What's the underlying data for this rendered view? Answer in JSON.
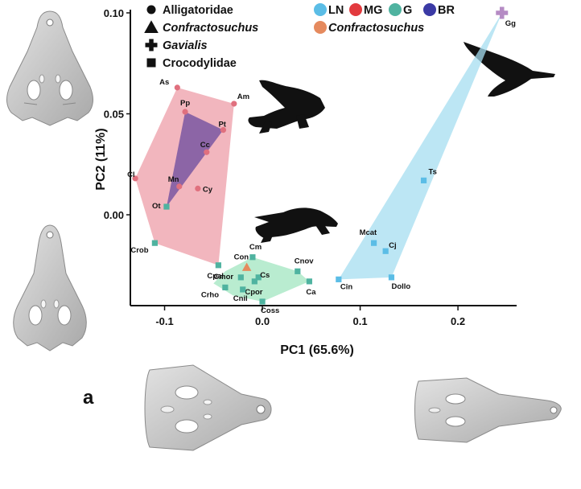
{
  "chart_data": {
    "type": "scatter",
    "title": "",
    "panel_label": "a",
    "xlabel": "PC1 (65.6%)",
    "ylabel": "PC2 (11%)",
    "xlim": [
      -0.135,
      0.26
    ],
    "ylim": [
      -0.045,
      0.1
    ],
    "xticks": [
      {
        "value": -0.1,
        "label": "-0.1"
      },
      {
        "value": 0.0,
        "label": "0.0"
      },
      {
        "value": 0.1,
        "label": "0.1"
      },
      {
        "value": 0.2,
        "label": "0.2"
      }
    ],
    "yticks": [
      {
        "value": 0.1,
        "label": "0.10"
      },
      {
        "value": 0.05,
        "label": "0.05"
      },
      {
        "value": 0.0,
        "label": "0.00"
      }
    ],
    "shape_legend": [
      {
        "symbol": "circle",
        "label": "Alligatoridae",
        "italic": false
      },
      {
        "symbol": "triangle",
        "label": "Confractosuchus",
        "italic": true
      },
      {
        "symbol": "plus",
        "label": "Gavialis",
        "italic": true
      },
      {
        "symbol": "square",
        "label": "Crocodylidae",
        "italic": false
      }
    ],
    "color_legend": [
      {
        "label": "LN",
        "color": "#5bbde6"
      },
      {
        "label": "MG",
        "color": "#e23a3e"
      },
      {
        "label": "G",
        "color": "#4fb3a0"
      },
      {
        "label": "BR",
        "color": "#3b3aa5"
      }
    ],
    "color_legend_extra": {
      "label": "Confractosuchus",
      "color": "#e58a5e"
    },
    "hulls": [
      {
        "name": "MG",
        "fill": "#e87a88",
        "opacity": 0.55,
        "points": [
          [
            -0.087,
            0.063
          ],
          [
            -0.029,
            0.055
          ],
          [
            -0.045,
            -0.025
          ],
          [
            -0.11,
            -0.014
          ],
          [
            -0.13,
            0.018
          ]
        ]
      },
      {
        "name": "BR",
        "fill": "#6a4a9e",
        "opacity": 0.75,
        "points": [
          [
            -0.079,
            0.051
          ],
          [
            -0.04,
            0.042
          ],
          [
            -0.098,
            0.004
          ]
        ]
      },
      {
        "name": "G",
        "fill": "#8be0b0",
        "opacity": 0.6,
        "points": [
          [
            -0.05,
            -0.034
          ],
          [
            -0.038,
            -0.028
          ],
          [
            -0.01,
            -0.021
          ],
          [
            0.036,
            -0.028
          ],
          [
            0.048,
            -0.033
          ],
          [
            0.0,
            -0.043
          ],
          [
            -0.03,
            -0.04
          ]
        ]
      },
      {
        "name": "LN",
        "fill": "#a5def0",
        "opacity": 0.75,
        "points": [
          [
            0.245,
            0.1
          ],
          [
            0.078,
            -0.032
          ],
          [
            0.132,
            -0.031
          ]
        ]
      }
    ],
    "points": [
      {
        "label": "As",
        "x": -0.087,
        "y": 0.063,
        "group": "MG",
        "shape": "circle",
        "color": "#e0707e"
      },
      {
        "label": "Am",
        "x": -0.029,
        "y": 0.055,
        "group": "MG",
        "shape": "circle",
        "color": "#e0707e"
      },
      {
        "label": "Pp",
        "x": -0.079,
        "y": 0.051,
        "group": "MG",
        "shape": "circle",
        "color": "#e0707e"
      },
      {
        "label": "Pt",
        "x": -0.04,
        "y": 0.042,
        "group": "MG",
        "shape": "circle",
        "color": "#e0707e"
      },
      {
        "label": "Cc",
        "x": -0.057,
        "y": 0.031,
        "group": "MG",
        "shape": "circle",
        "color": "#e0707e"
      },
      {
        "label": "Cl",
        "x": -0.13,
        "y": 0.018,
        "group": "MG",
        "shape": "circle",
        "color": "#e0707e"
      },
      {
        "label": "Mn",
        "x": -0.085,
        "y": 0.014,
        "group": "MG",
        "shape": "circle",
        "color": "#e0707e"
      },
      {
        "label": "Cy",
        "x": -0.066,
        "y": 0.013,
        "group": "MG",
        "shape": "circle",
        "color": "#e0707e"
      },
      {
        "label": "Ot",
        "x": -0.098,
        "y": 0.004,
        "group": "G",
        "shape": "square",
        "color": "#4fb3a0"
      },
      {
        "label": "Crob",
        "x": -0.11,
        "y": -0.014,
        "group": "G",
        "shape": "square",
        "color": "#4fb3a0"
      },
      {
        "label": "Cpal",
        "x": -0.045,
        "y": -0.025,
        "group": "G",
        "shape": "square",
        "color": "#4fb3a0"
      },
      {
        "label": "Con",
        "x": -0.016,
        "y": -0.026,
        "group": "Confractosuchus",
        "shape": "triangle",
        "color": "#e58a5e"
      },
      {
        "label": "Cm",
        "x": -0.01,
        "y": -0.021,
        "group": "G",
        "shape": "square",
        "color": "#4fb3a0"
      },
      {
        "label": "Cnov",
        "x": 0.036,
        "y": -0.028,
        "group": "G",
        "shape": "square",
        "color": "#4fb3a0"
      },
      {
        "label": "Cs",
        "x": -0.004,
        "y": -0.031,
        "group": "G",
        "shape": "square",
        "color": "#4fb3a0"
      },
      {
        "label": "Cmor",
        "x": -0.022,
        "y": -0.031,
        "group": "G",
        "shape": "square",
        "color": "#4fb3a0"
      },
      {
        "label": "Cpor",
        "x": -0.008,
        "y": -0.033,
        "group": "G",
        "shape": "square",
        "color": "#4fb3a0"
      },
      {
        "label": "Ca",
        "x": 0.048,
        "y": -0.033,
        "group": "G",
        "shape": "square",
        "color": "#4fb3a0"
      },
      {
        "label": "Crho",
        "x": -0.038,
        "y": -0.036,
        "group": "G",
        "shape": "square",
        "color": "#4fb3a0"
      },
      {
        "label": "Cnil",
        "x": -0.02,
        "y": -0.037,
        "group": "G",
        "shape": "square",
        "color": "#4fb3a0"
      },
      {
        "label": "Coss",
        "x": 0.0,
        "y": -0.043,
        "group": "G",
        "shape": "square",
        "color": "#4fb3a0"
      },
      {
        "label": "Cin",
        "x": 0.078,
        "y": -0.032,
        "group": "LN",
        "shape": "square",
        "color": "#5bbde6"
      },
      {
        "label": "Dollo",
        "x": 0.132,
        "y": -0.031,
        "group": "LN",
        "shape": "square",
        "color": "#5bbde6"
      },
      {
        "label": "Mcat",
        "x": 0.114,
        "y": -0.014,
        "group": "LN",
        "shape": "square",
        "color": "#5bbde6"
      },
      {
        "label": "Cj",
        "x": 0.126,
        "y": -0.018,
        "group": "LN",
        "shape": "square",
        "color": "#5bbde6"
      },
      {
        "label": "Ts",
        "x": 0.165,
        "y": 0.017,
        "group": "LN",
        "shape": "square",
        "color": "#5bbde6"
      },
      {
        "label": "Gg",
        "x": 0.245,
        "y": 0.1,
        "group": "Gavialis",
        "shape": "plus",
        "color": "#b58bc4"
      }
    ]
  }
}
